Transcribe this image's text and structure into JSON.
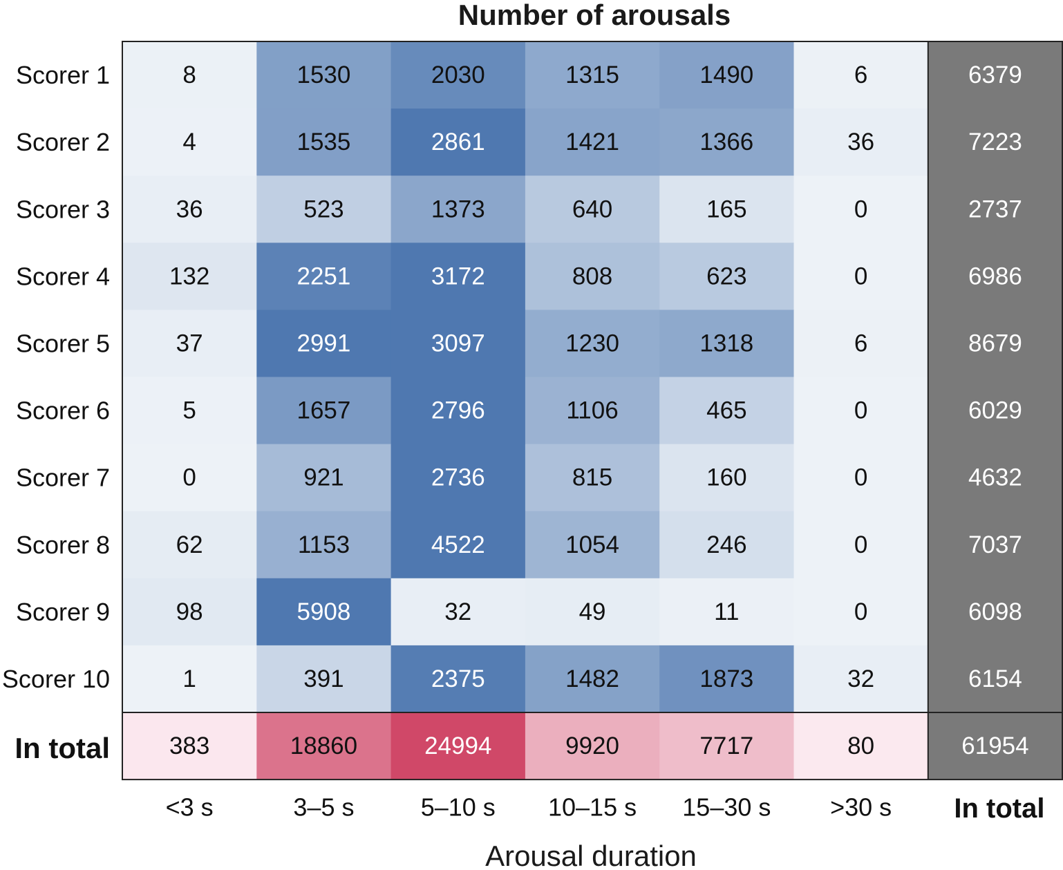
{
  "chart_data": {
    "type": "heatmap",
    "title": "Number of arousals",
    "xlabel": "Arousal duration",
    "ylabel": "",
    "columns": [
      "<3 s",
      "3–5 s",
      "5–10 s",
      "10–15 s",
      "15–30 s",
      ">30 s"
    ],
    "total_column_label": "In total",
    "rows": [
      "Scorer 1",
      "Scorer 2",
      "Scorer 3",
      "Scorer 4",
      "Scorer 5",
      "Scorer 6",
      "Scorer 7",
      "Scorer 8",
      "Scorer 9",
      "Scorer 10"
    ],
    "total_row_label": "In total",
    "values": [
      [
        8,
        1530,
        2030,
        1315,
        1490,
        6
      ],
      [
        4,
        1535,
        2861,
        1421,
        1366,
        36
      ],
      [
        36,
        523,
        1373,
        640,
        165,
        0
      ],
      [
        132,
        2251,
        3172,
        808,
        623,
        0
      ],
      [
        37,
        2991,
        3097,
        1230,
        1318,
        6
      ],
      [
        5,
        1657,
        2796,
        1106,
        465,
        0
      ],
      [
        0,
        921,
        2736,
        815,
        160,
        0
      ],
      [
        62,
        1153,
        4522,
        1054,
        246,
        0
      ],
      [
        98,
        5908,
        32,
        49,
        11,
        0
      ],
      [
        1,
        391,
        2375,
        1482,
        1873,
        32
      ]
    ],
    "row_totals": [
      6379,
      7223,
      2737,
      6986,
      8679,
      6029,
      4632,
      7037,
      6098,
      6154
    ],
    "column_totals": [
      383,
      18860,
      24994,
      9920,
      7717,
      80
    ],
    "grand_total": 61954,
    "colors": {
      "scorer_low": "#edf2f7",
      "scorer_high": "#4f78b0",
      "total_low": "#fbe9ef",
      "total_high": "#d04868",
      "total_column": "#7a7a7a",
      "border": "#222222"
    }
  }
}
